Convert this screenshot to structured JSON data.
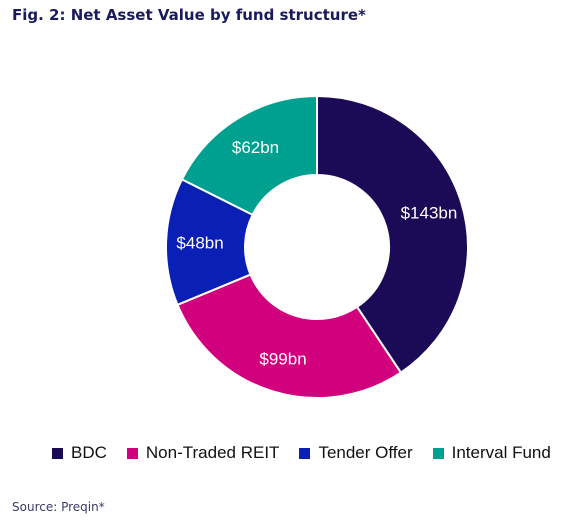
{
  "figure": {
    "title": "Fig. 2: Net Asset Value by fund structure*",
    "source": "Source: Preqin*"
  },
  "chart_data": {
    "type": "pie",
    "donut": true,
    "title": "Fig. 2: Net Asset Value by fund structure*",
    "unit": "bn USD",
    "legend_position": "bottom",
    "categories": [
      "BDC",
      "Non-Traded REIT",
      "Tender Offer",
      "Interval Fund"
    ],
    "values": [
      143,
      99,
      48,
      62
    ],
    "data_labels": [
      "$143bn",
      "$99bn",
      "$48bn",
      "$62bn"
    ],
    "colors": [
      "#1b0a55",
      "#d1007d",
      "#0a1fb4",
      "#00a090"
    ]
  }
}
